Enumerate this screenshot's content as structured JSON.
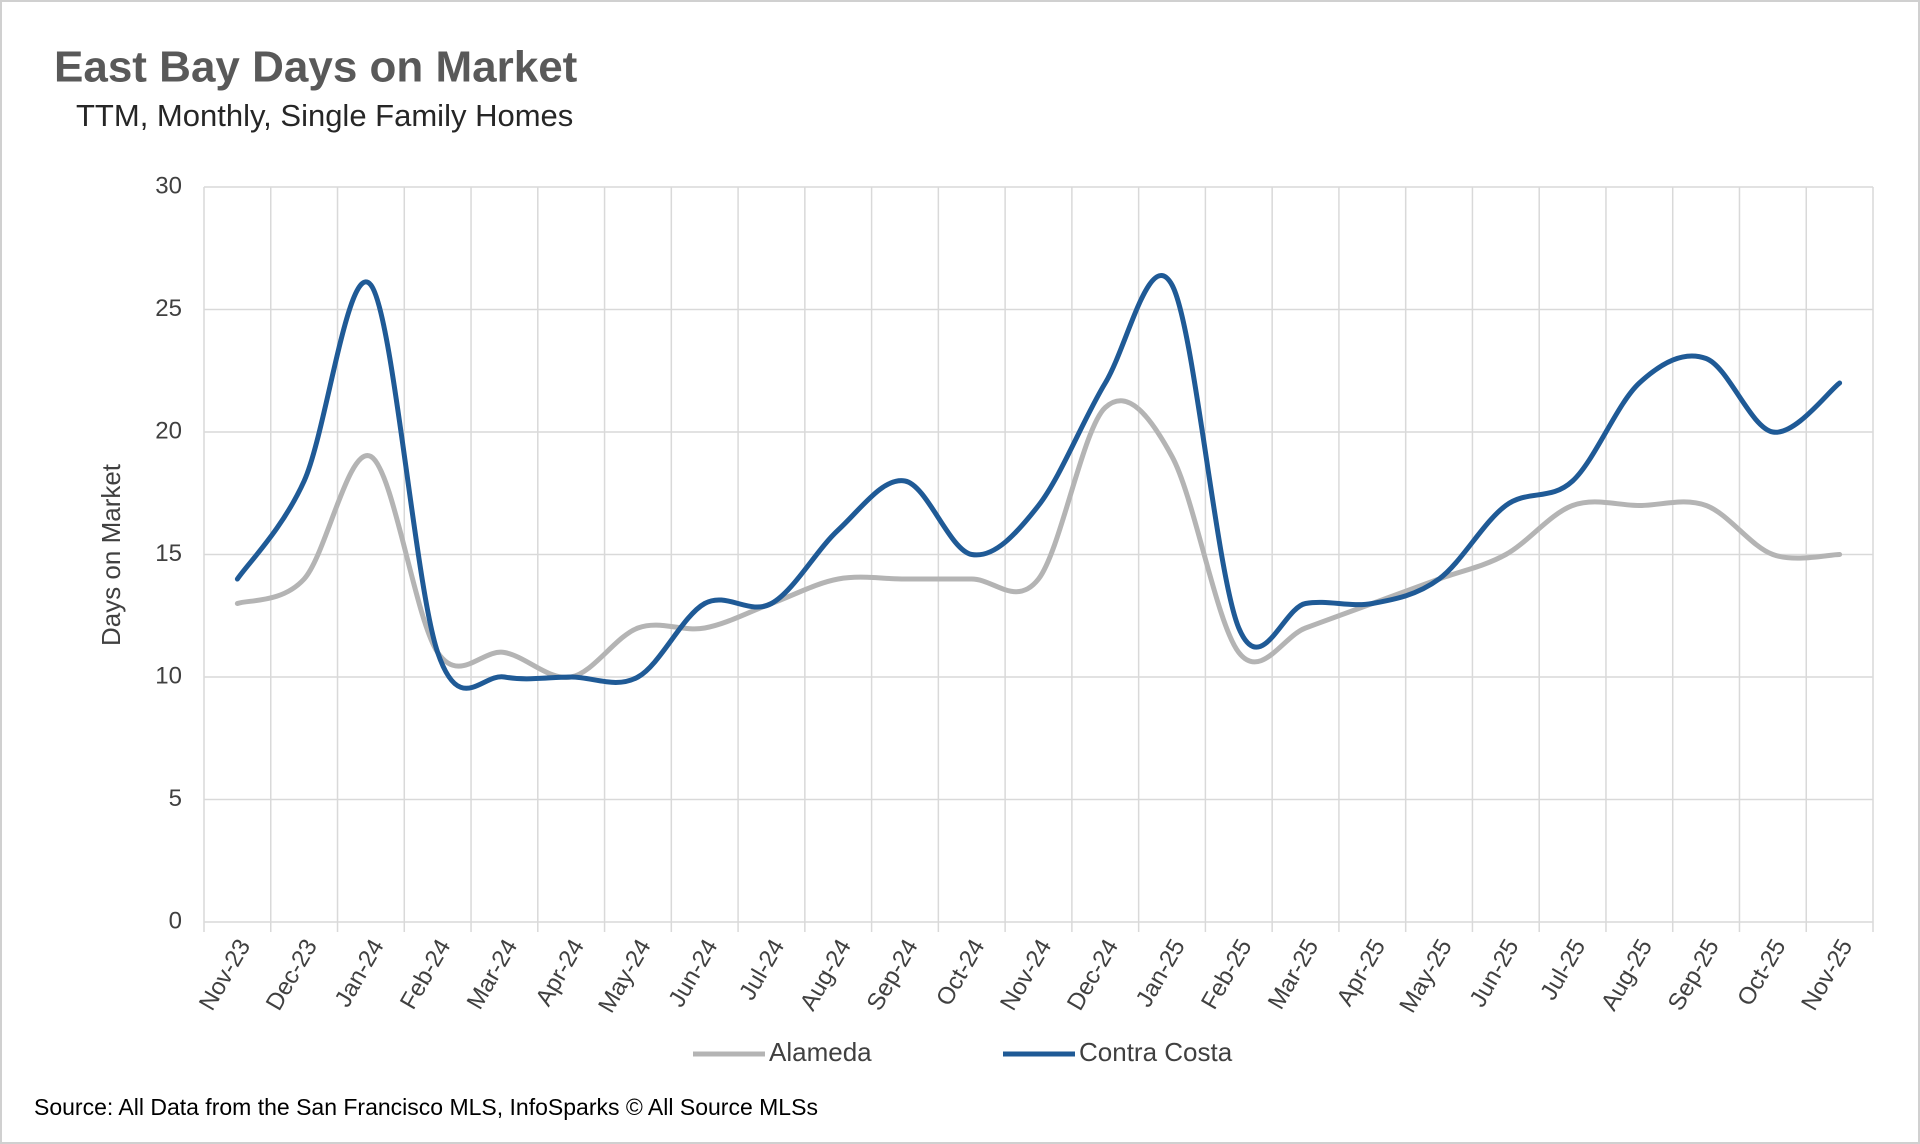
{
  "chart_data": {
    "type": "line",
    "title": "East Bay Days on Market",
    "subtitle": "TTM, Monthly, Single Family Homes",
    "y_label": "Days on Market",
    "source": "Source: All Data from the San Francisco MLS, InfoSparks © All Source MLSs",
    "categories": [
      "Nov-23",
      "Dec-23",
      "Jan-24",
      "Feb-24",
      "Mar-24",
      "Apr-24",
      "May-24",
      "Jun-24",
      "Jul-24",
      "Aug-24",
      "Sep-24",
      "Oct-24",
      "Nov-24",
      "Dec-24",
      "Jan-25",
      "Feb-25",
      "Mar-25",
      "Apr-25",
      "May-25",
      "Jun-25",
      "Jul-25",
      "Aug-25",
      "Sep-25",
      "Oct-25",
      "Nov-25"
    ],
    "series": [
      {
        "name": "Alameda",
        "color": "#b4b4b4",
        "values": [
          13,
          14,
          19,
          11,
          11,
          10,
          12,
          12,
          13,
          14,
          14,
          14,
          14,
          21,
          19,
          11,
          12,
          13,
          14,
          15,
          17,
          17,
          17,
          15,
          15
        ]
      },
      {
        "name": "Contra Costa",
        "color": "#1f5a96",
        "values": [
          14,
          18,
          26,
          11,
          10,
          10,
          10,
          13,
          13,
          16,
          18,
          15,
          17,
          22,
          26,
          12,
          13,
          13,
          14,
          17,
          18,
          22,
          23,
          20,
          22
        ]
      }
    ],
    "ylim": [
      0,
      30
    ],
    "yticks": [
      0,
      5,
      10,
      15,
      20,
      25,
      30
    ],
    "grid": true,
    "smooth": true,
    "legend": "bottom"
  }
}
